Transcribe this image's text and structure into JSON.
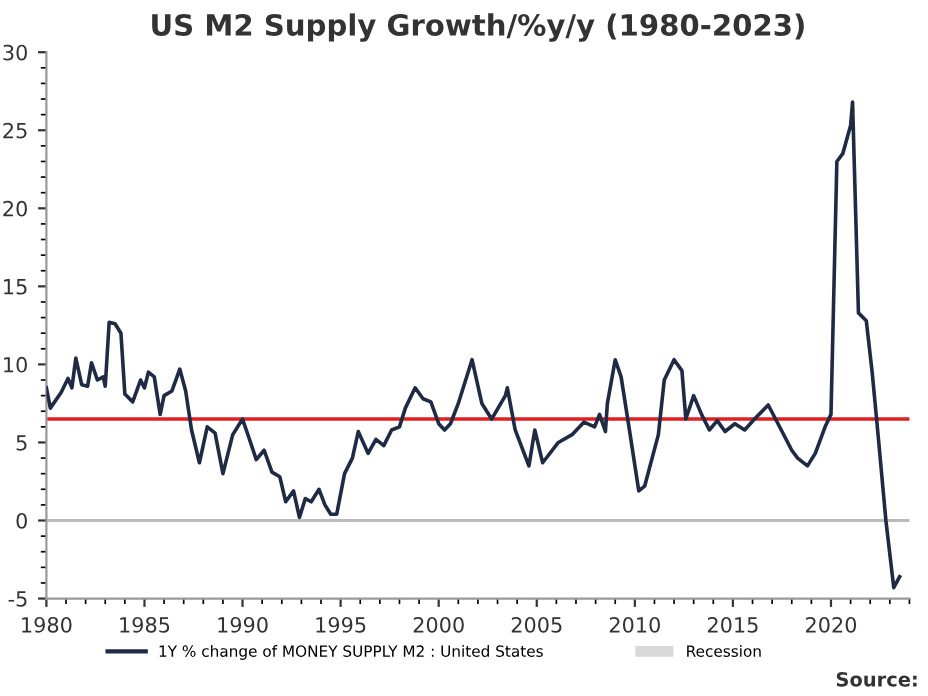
{
  "chart_data": {
    "type": "line",
    "title": "US M2 Supply Growth/%y/y (1980-2023)",
    "series": [
      {
        "name": "1Y % change of MONEY SUPPLY M2 : United States",
        "color": "#1f2a44",
        "x": [
          1980.0,
          1980.2,
          1980.75,
          1981.1,
          1981.3,
          1981.5,
          1981.8,
          1982.1,
          1982.3,
          1982.6,
          1982.9,
          1983.0,
          1983.2,
          1983.5,
          1983.8,
          1984.0,
          1984.4,
          1984.8,
          1985.0,
          1985.2,
          1985.5,
          1985.8,
          1986.0,
          1986.4,
          1986.8,
          1987.1,
          1987.4,
          1987.8,
          1988.2,
          1988.6,
          1989.0,
          1989.5,
          1990.0,
          1990.3,
          1990.7,
          1991.1,
          1991.5,
          1991.9,
          1992.2,
          1992.6,
          1992.9,
          1993.2,
          1993.5,
          1993.9,
          1994.2,
          1994.5,
          1994.8,
          1995.2,
          1995.6,
          1995.9,
          1996.4,
          1996.8,
          1997.2,
          1997.6,
          1998.0,
          1998.3,
          1998.8,
          1999.2,
          1999.6,
          2000.0,
          2000.3,
          2000.6,
          2001.0,
          2001.7,
          2002.2,
          2002.7,
          2003.4,
          2003.5,
          2003.9,
          2004.6,
          2004.9,
          2005.3,
          2006.1,
          2006.8,
          2007.4,
          2007.95,
          2008.2,
          2008.5,
          2008.6,
          2009.0,
          2009.3,
          2009.7,
          2010.2,
          2010.5,
          2011.2,
          2011.5,
          2012.0,
          2012.4,
          2012.6,
          2013.0,
          2013.4,
          2013.8,
          2014.2,
          2014.6,
          2015.1,
          2015.6,
          2016.1,
          2016.8,
          2017.3,
          2018.0,
          2018.3,
          2018.8,
          2019.2,
          2019.7,
          2020.0,
          2020.3,
          2020.6,
          2021.0,
          2021.1,
          2021.4,
          2021.8,
          2022.1,
          2022.4,
          2022.8,
          2023.2,
          2023.5
        ],
        "values": [
          8.5,
          7.2,
          8.2,
          9.1,
          8.5,
          10.4,
          8.7,
          8.6,
          10.1,
          9.0,
          9.2,
          8.6,
          12.7,
          12.6,
          12.0,
          8.1,
          7.6,
          9.0,
          8.5,
          9.5,
          9.2,
          6.8,
          8.0,
          8.3,
          9.7,
          8.3,
          5.8,
          3.7,
          6.0,
          5.6,
          3.0,
          5.5,
          6.5,
          5.4,
          3.9,
          4.5,
          3.1,
          2.8,
          1.2,
          1.9,
          0.2,
          1.4,
          1.2,
          2.0,
          1.0,
          0.4,
          0.4,
          3.0,
          4.0,
          5.7,
          4.3,
          5.2,
          4.8,
          5.8,
          6.0,
          7.2,
          8.5,
          7.8,
          7.6,
          6.2,
          5.8,
          6.2,
          7.5,
          10.3,
          7.5,
          6.5,
          8.0,
          8.5,
          5.8,
          3.5,
          5.8,
          3.7,
          5.0,
          5.5,
          6.3,
          6.0,
          6.8,
          5.7,
          7.5,
          10.3,
          9.2,
          6.0,
          1.9,
          2.2,
          5.5,
          9.0,
          10.3,
          9.6,
          6.5,
          8.0,
          6.8,
          5.8,
          6.4,
          5.7,
          6.2,
          5.8,
          6.5,
          7.4,
          6.2,
          4.5,
          4.0,
          3.5,
          4.3,
          6.0,
          6.8,
          23.0,
          23.5,
          25.3,
          26.8,
          13.3,
          12.8,
          9.5,
          5.5,
          0.0,
          -4.3,
          -3.6
        ]
      },
      {
        "name": "Recession",
        "type": "area",
        "color": "#d9d9d9"
      }
    ],
    "xlim": [
      1980,
      2024
    ],
    "xticks": [
      1980,
      1985,
      1990,
      1995,
      2000,
      2005,
      2010,
      2015,
      2020
    ],
    "ylim": [
      -5,
      30
    ],
    "yticks": [
      -5,
      0,
      5,
      10,
      15,
      20,
      25,
      30
    ],
    "ref_lines": [
      {
        "axis": "y",
        "value": 6.5,
        "color": "#e02020"
      },
      {
        "axis": "y",
        "value": 0,
        "color": "#bbbbbb"
      }
    ],
    "grid": false,
    "legend": "bottom",
    "annotations": [
      "Source:"
    ]
  }
}
